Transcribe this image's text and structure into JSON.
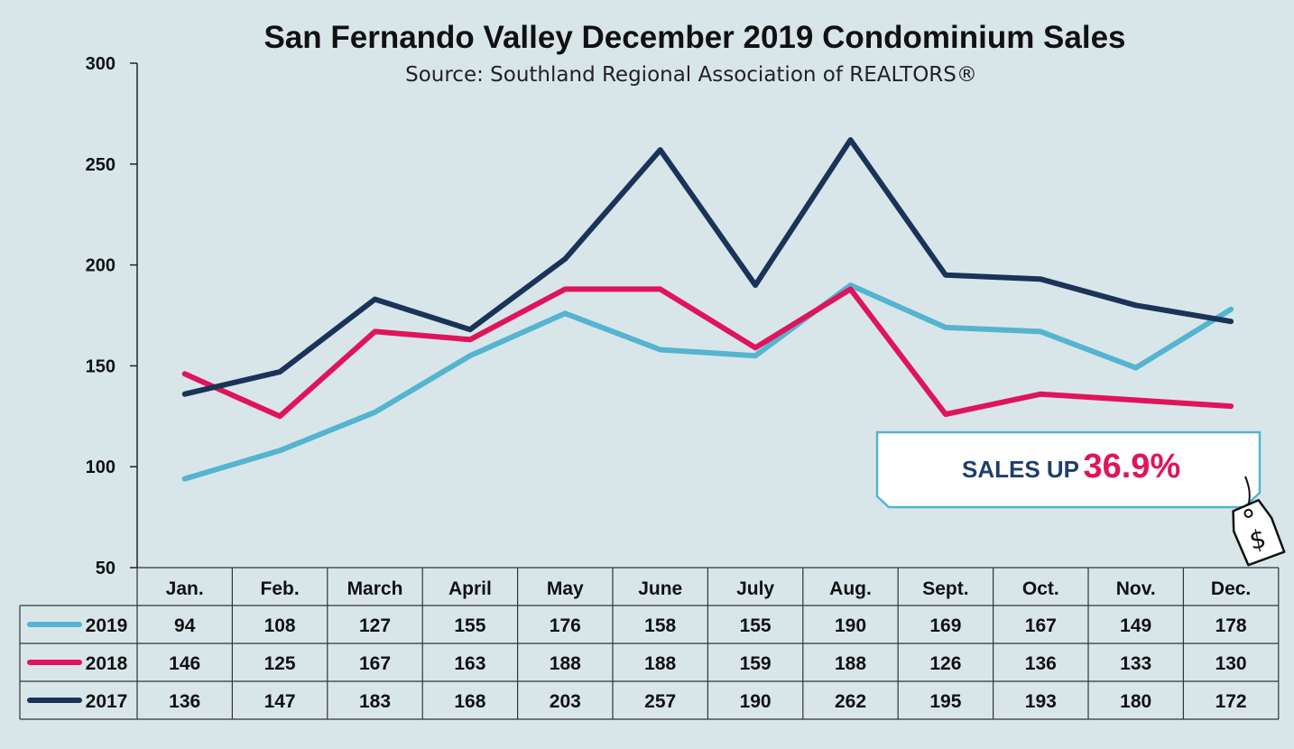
{
  "chart_data": {
    "type": "line",
    "title": "San Fernando Valley December 2019 Condominium Sales",
    "subtitle": "Source: Southland Regional Association of REALTORS®",
    "categories": [
      "Jan.",
      "Feb.",
      "March",
      "April",
      "May",
      "June",
      "July",
      "Aug.",
      "Sept.",
      "Oct.",
      "Nov.",
      "Dec."
    ],
    "series": [
      {
        "name": "2019",
        "color": "#55b4cf",
        "values": [
          94,
          108,
          127,
          155,
          176,
          158,
          155,
          190,
          169,
          167,
          149,
          178
        ]
      },
      {
        "name": "2018",
        "color": "#e0145a",
        "values": [
          146,
          125,
          167,
          163,
          188,
          188,
          159,
          188,
          126,
          136,
          133,
          130
        ]
      },
      {
        "name": "2017",
        "color": "#1b3358",
        "values": [
          136,
          147,
          183,
          168,
          203,
          257,
          190,
          262,
          195,
          193,
          180,
          172
        ]
      }
    ],
    "ylim": [
      50,
      300
    ],
    "yticks": [
      "50",
      "100",
      "150",
      "200",
      "250",
      "300"
    ],
    "grid": false,
    "legend": "data table below chart",
    "annotation": {
      "label": "SALES UP",
      "value": "36.9%",
      "icon": "price-tag-dollar-icon"
    }
  }
}
